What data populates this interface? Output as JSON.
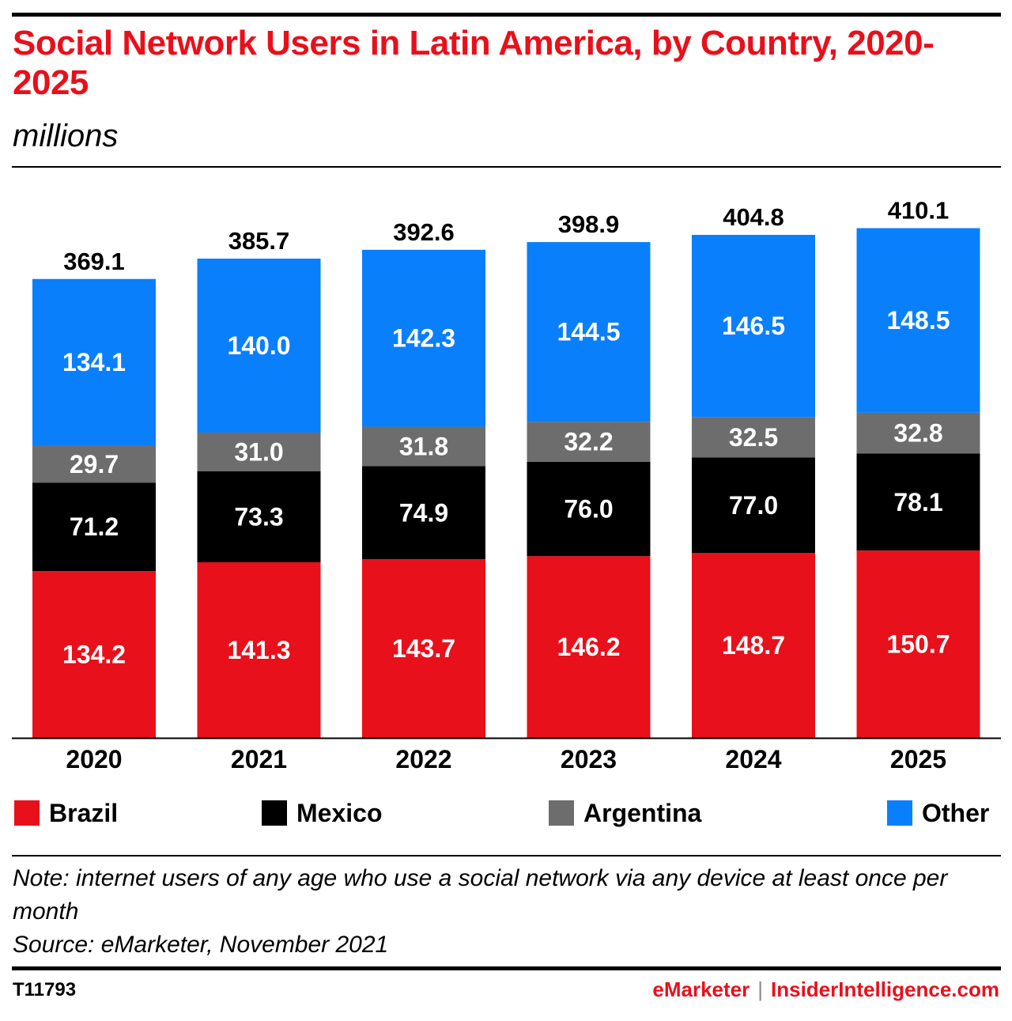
{
  "header": {
    "title": "Social Network Users in Latin America, by Country, 2020-2025",
    "subtitle": "millions"
  },
  "colors": {
    "Brazil": "#e8101b",
    "Mexico": "#000000",
    "Argentina": "#6d6d6d",
    "Other": "#0a7ffb",
    "accent": "#e8101b"
  },
  "chart_data": {
    "type": "bar",
    "stacked": true,
    "categories": [
      "2020",
      "2021",
      "2022",
      "2023",
      "2024",
      "2025"
    ],
    "series": [
      {
        "name": "Brazil",
        "values": [
          134.2,
          141.3,
          143.7,
          146.2,
          148.7,
          150.7
        ]
      },
      {
        "name": "Mexico",
        "values": [
          71.2,
          73.3,
          74.9,
          76.0,
          77.0,
          78.1
        ]
      },
      {
        "name": "Argentina",
        "values": [
          29.7,
          31.0,
          31.8,
          32.2,
          32.5,
          32.8
        ]
      },
      {
        "name": "Other",
        "values": [
          134.1,
          140.0,
          142.3,
          144.5,
          146.5,
          148.5
        ]
      }
    ],
    "totals": [
      369.1,
      385.7,
      392.6,
      398.9,
      404.8,
      410.1
    ],
    "title": "Social Network Users in Latin America, by Country, 2020-2025",
    "ylabel": "millions",
    "legend_position": "bottom",
    "grid": false
  },
  "legend": {
    "items": [
      {
        "label": "Brazil"
      },
      {
        "label": "Mexico"
      },
      {
        "label": "Argentina"
      },
      {
        "label": "Other"
      }
    ]
  },
  "notes": {
    "note": "Note: internet users of any age who use a social network via any device at least once per month",
    "source": "Source: eMarketer, November 2021"
  },
  "footer": {
    "chart_id": "T11793",
    "brand_a": "eMarketer",
    "separator": "|",
    "brand_b": "InsiderIntelligence.com"
  }
}
